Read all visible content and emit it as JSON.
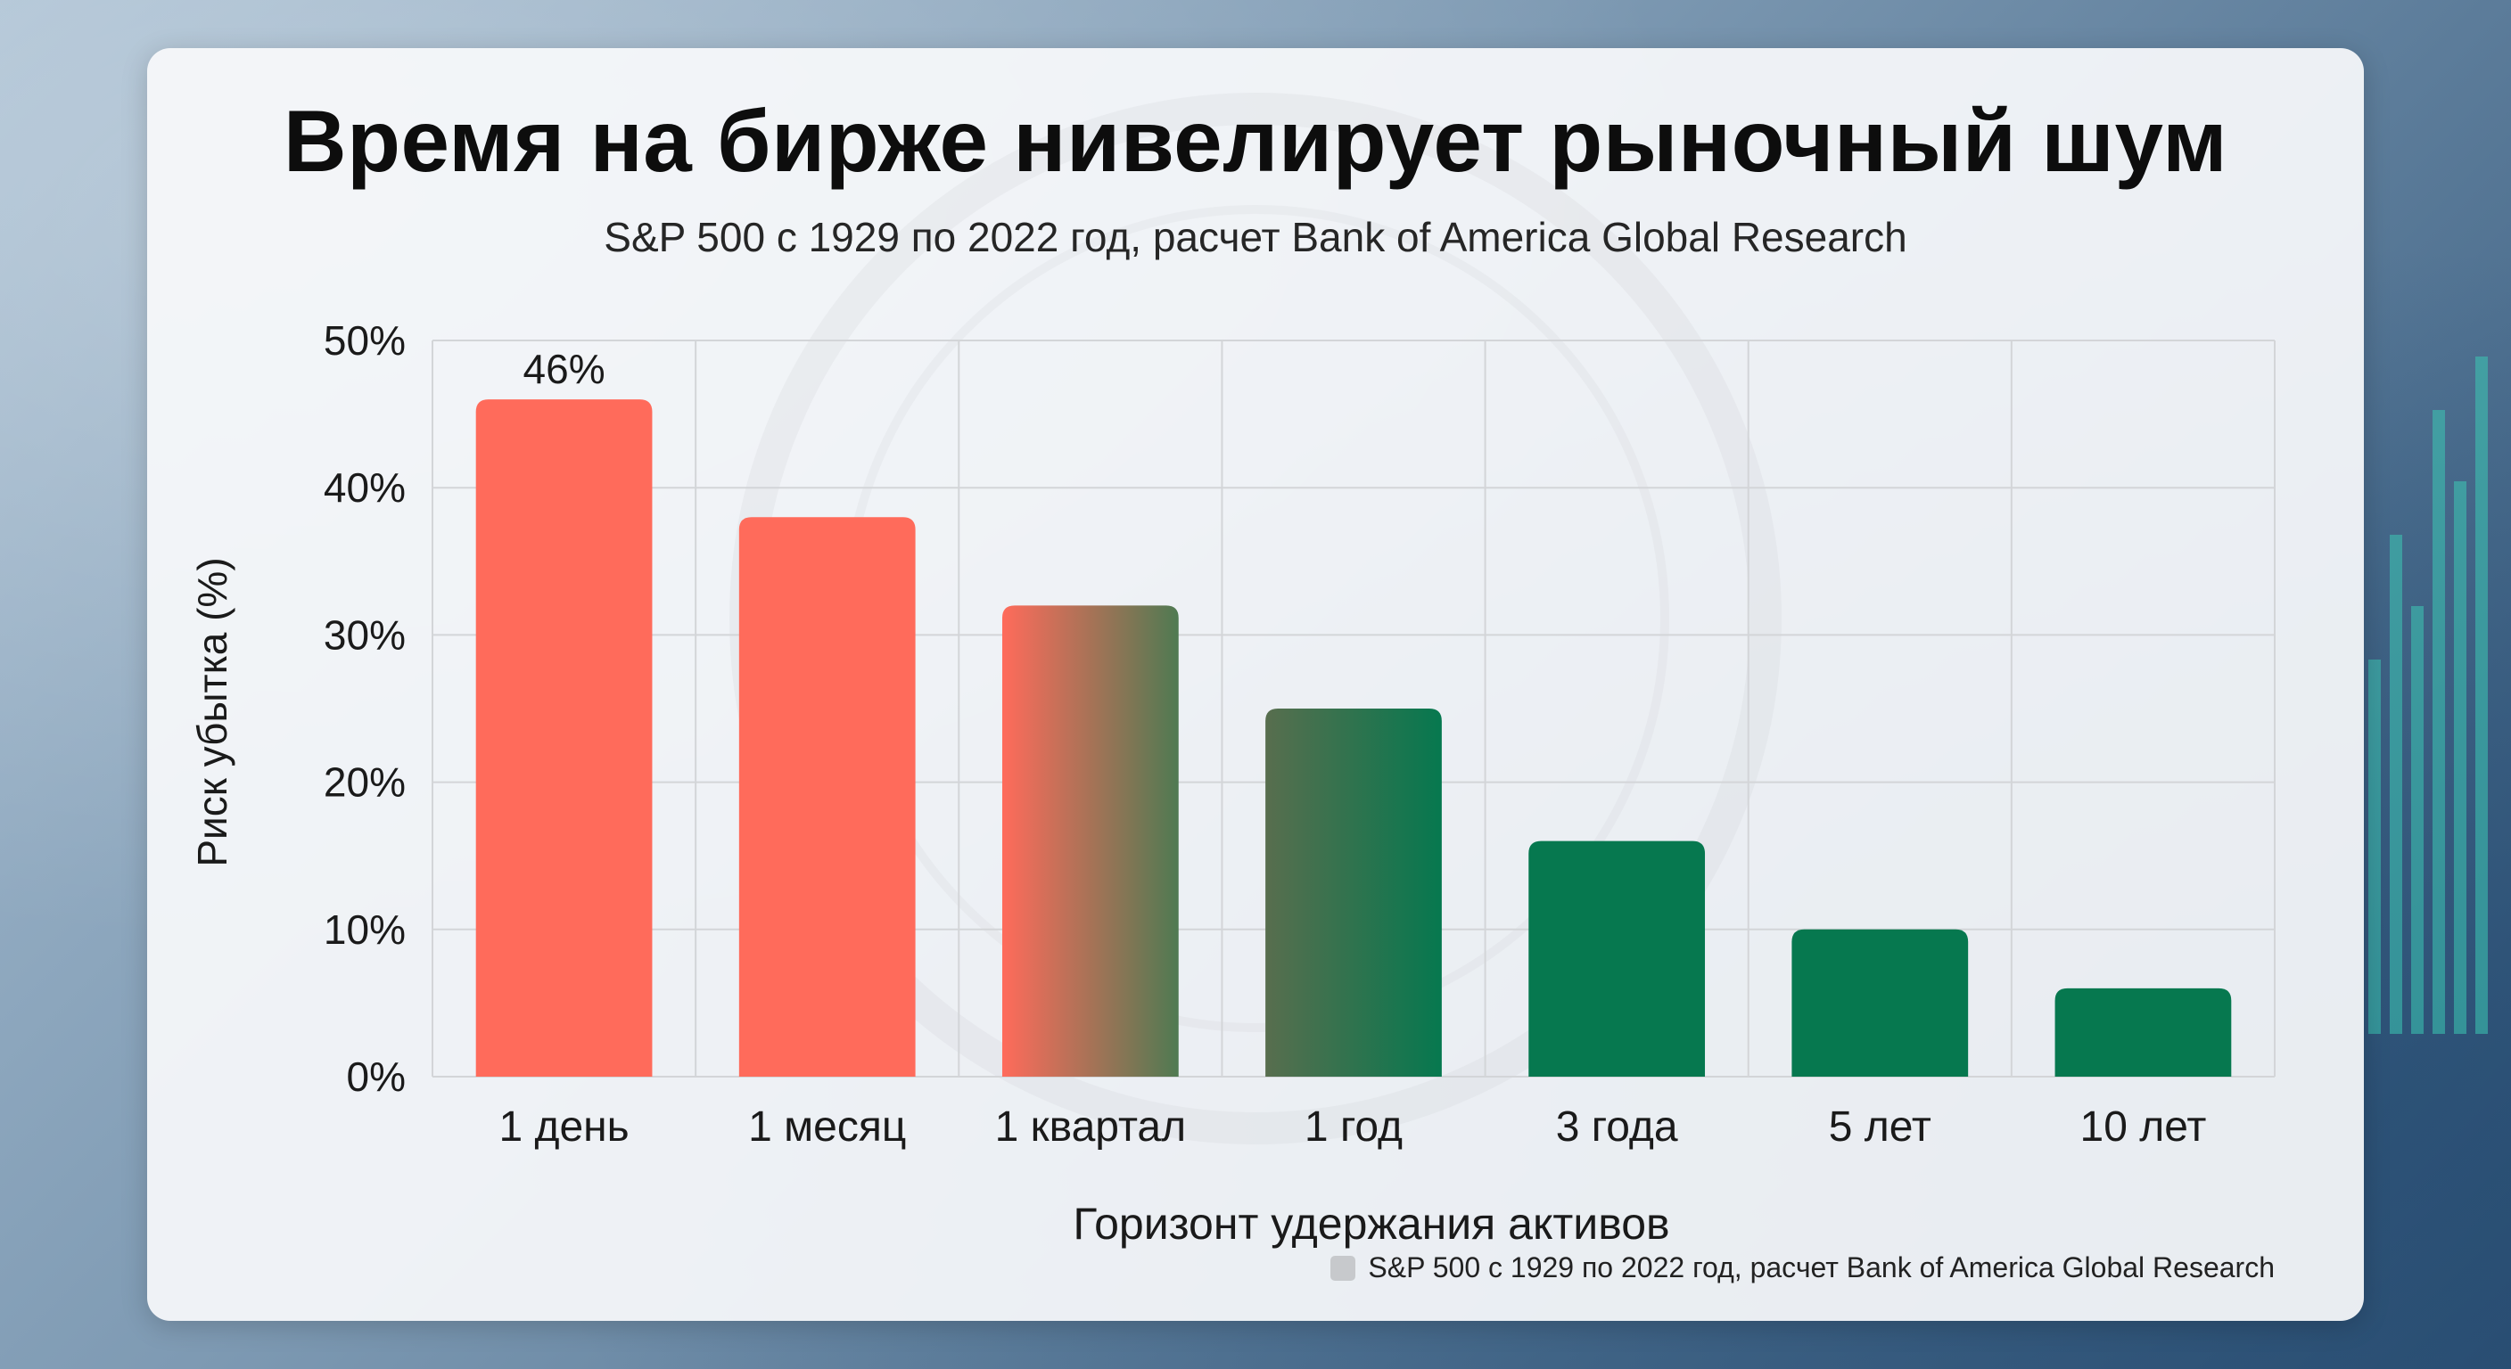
{
  "title": "Время на бирже нивелирует рыночный шум",
  "subtitle": "S&P 500 с 1929 по 2022 год, расчет Bank of America Global Research",
  "chart_data": {
    "type": "bar",
    "categories": [
      "1 день",
      "1 месяц",
      "1 квартал",
      "1 год",
      "3 года",
      "5 лет",
      "10 лет"
    ],
    "values": [
      46,
      38,
      32,
      25,
      16,
      10,
      6
    ],
    "data_labels": {
      "1 день": "46%"
    },
    "xlabel": "Горизонт удержания активов",
    "ylabel": "Риск убытка (%)",
    "ylim": [
      0,
      50
    ],
    "yticks": [
      "0%",
      "10%",
      "20%",
      "30%",
      "40%",
      "50%"
    ],
    "grid": true,
    "legend": {
      "label": "S&P 500 с 1929 по 2022 год, расчет Bank of America Global Research",
      "placement": "bottom-right"
    },
    "colors": {
      "high_risk": "#ff6b5b",
      "low_risk": "#06784f",
      "grid": "#d3d5d8",
      "legend_swatch": "#c7c9cc"
    },
    "bar_fill": [
      "high_risk",
      "high_risk",
      "gradient",
      "gradient",
      "low_risk",
      "low_risk",
      "low_risk"
    ]
  }
}
